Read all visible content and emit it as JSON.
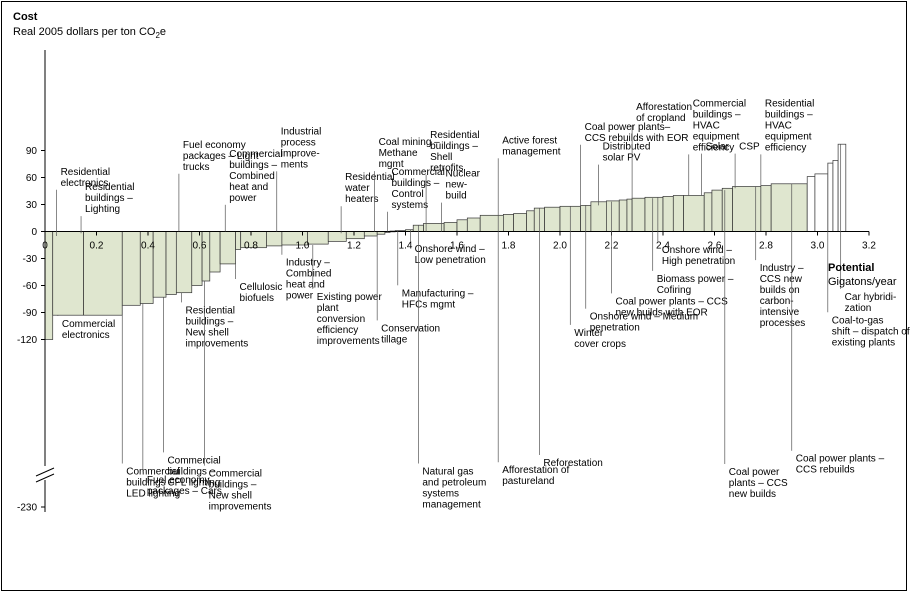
{
  "chart_data": {
    "type": "bar",
    "variant": "marginal-abatement-cost-curve",
    "title": "Cost",
    "ylabel": "Real 2005 dollars per ton CO",
    "ylabel_sub": "2",
    "ylabel_tail": "e",
    "xlabel_title": "Potential",
    "xlabel_unit": "Gigatons/year",
    "xlim": [
      0,
      3.2
    ],
    "ylim": [
      -120,
      100
    ],
    "y_break": true,
    "y_ticks": [
      90,
      60,
      30,
      0,
      -30,
      -60,
      -90,
      -120,
      -230
    ],
    "y_tick_labels": [
      "90",
      "60",
      "30",
      "0",
      "-30",
      "-60",
      "-90",
      "-120",
      "-230"
    ],
    "x_ticks": [
      0,
      0.2,
      0.4,
      0.6,
      0.8,
      1.0,
      1.2,
      1.4,
      1.6,
      1.8,
      2.0,
      2.2,
      2.4,
      2.6,
      2.8,
      3.0,
      3.2
    ],
    "x_tick_labels": [
      "0",
      "0.2",
      "0.4",
      "0.6",
      "0.8",
      "1.0",
      "1.2",
      "1.4",
      "1.6",
      "1.8",
      "2.0",
      "2.2",
      "2.4",
      "2.6",
      "2.8",
      "3.0",
      "3.2"
    ],
    "bar_fill": "#dfe6cf",
    "bar_stroke": "#333333",
    "bars": [
      {
        "x0": 0.0,
        "x1": 0.03,
        "v": -120
      },
      {
        "x0": 0.03,
        "x1": 0.15,
        "v": -93
      },
      {
        "x0": 0.15,
        "x1": 0.3,
        "v": -93
      },
      {
        "x0": 0.3,
        "x1": 0.37,
        "v": -82
      },
      {
        "x0": 0.37,
        "x1": 0.42,
        "v": -80
      },
      {
        "x0": 0.42,
        "x1": 0.47,
        "v": -73
      },
      {
        "x0": 0.47,
        "x1": 0.51,
        "v": -70
      },
      {
        "x0": 0.51,
        "x1": 0.57,
        "v": -68
      },
      {
        "x0": 0.57,
        "x1": 0.61,
        "v": -60
      },
      {
        "x0": 0.61,
        "x1": 0.64,
        "v": -55
      },
      {
        "x0": 0.64,
        "x1": 0.68,
        "v": -45
      },
      {
        "x0": 0.68,
        "x1": 0.74,
        "v": -36
      },
      {
        "x0": 0.74,
        "x1": 0.76,
        "v": -20
      },
      {
        "x0": 0.76,
        "x1": 0.86,
        "v": -18
      },
      {
        "x0": 0.86,
        "x1": 0.92,
        "v": -16
      },
      {
        "x0": 0.92,
        "x1": 1.02,
        "v": -15
      },
      {
        "x0": 1.02,
        "x1": 1.1,
        "v": -14
      },
      {
        "x0": 1.1,
        "x1": 1.17,
        "v": -11
      },
      {
        "x0": 1.17,
        "x1": 1.24,
        "v": -8
      },
      {
        "x0": 1.24,
        "x1": 1.29,
        "v": -5
      },
      {
        "x0": 1.29,
        "x1": 1.32,
        "v": -3
      },
      {
        "x0": 1.32,
        "x1": 1.34,
        "v": -1
      },
      {
        "x0": 1.34,
        "x1": 1.36,
        "v": 0.5
      },
      {
        "x0": 1.36,
        "x1": 1.4,
        "v": 1
      },
      {
        "x0": 1.4,
        "x1": 1.43,
        "v": 2
      },
      {
        "x0": 1.43,
        "x1": 1.47,
        "v": 7
      },
      {
        "x0": 1.47,
        "x1": 1.55,
        "v": 9
      },
      {
        "x0": 1.55,
        "x1": 1.6,
        "v": 10
      },
      {
        "x0": 1.6,
        "x1": 1.64,
        "v": 13
      },
      {
        "x0": 1.64,
        "x1": 1.69,
        "v": 15
      },
      {
        "x0": 1.69,
        "x1": 1.78,
        "v": 18
      },
      {
        "x0": 1.78,
        "x1": 1.82,
        "v": 19
      },
      {
        "x0": 1.82,
        "x1": 1.87,
        "v": 20
      },
      {
        "x0": 1.87,
        "x1": 1.9,
        "v": 23
      },
      {
        "x0": 1.9,
        "x1": 1.94,
        "v": 26
      },
      {
        "x0": 1.94,
        "x1": 2.0,
        "v": 27
      },
      {
        "x0": 2.0,
        "x1": 2.08,
        "v": 28
      },
      {
        "x0": 2.08,
        "x1": 2.12,
        "v": 29
      },
      {
        "x0": 2.12,
        "x1": 2.18,
        "v": 33
      },
      {
        "x0": 2.18,
        "x1": 2.23,
        "v": 34
      },
      {
        "x0": 2.23,
        "x1": 2.26,
        "v": 35
      },
      {
        "x0": 2.26,
        "x1": 2.28,
        "v": 36
      },
      {
        "x0": 2.28,
        "x1": 2.33,
        "v": 37
      },
      {
        "x0": 2.33,
        "x1": 2.4,
        "v": 38
      },
      {
        "x0": 2.4,
        "x1": 2.44,
        "v": 39
      },
      {
        "x0": 2.44,
        "x1": 2.48,
        "v": 40
      },
      {
        "x0": 2.48,
        "x1": 2.56,
        "v": 40
      },
      {
        "x0": 2.56,
        "x1": 2.59,
        "v": 43
      },
      {
        "x0": 2.59,
        "x1": 2.63,
        "v": 46
      },
      {
        "x0": 2.63,
        "x1": 2.67,
        "v": 48
      },
      {
        "x0": 2.67,
        "x1": 2.78,
        "v": 50
      },
      {
        "x0": 2.78,
        "x1": 2.82,
        "v": 51
      },
      {
        "x0": 2.82,
        "x1": 2.96,
        "v": 53
      },
      {
        "x0": 2.96,
        "x1": 2.99,
        "v": 61
      },
      {
        "x0": 2.99,
        "x1": 3.04,
        "v": 64
      },
      {
        "x0": 3.04,
        "x1": 3.06,
        "v": 76
      },
      {
        "x0": 3.06,
        "x1": 3.08,
        "v": 79
      },
      {
        "x0": 3.08,
        "x1": 3.11,
        "v": 97
      }
    ],
    "white_from_index": 53,
    "annotations": [
      {
        "lines": [
          "Residential",
          "electronics"
        ],
        "x": 0.045,
        "y": 62,
        "ty": 63,
        "ly": -5
      },
      {
        "lines": [
          "Residential",
          "buildings –",
          "Lighting"
        ],
        "x": 0.14,
        "y": 45,
        "ty": 46,
        "ly": -2
      },
      {
        "lines": [
          "Fuel economy",
          "packages – Light",
          "trucks"
        ],
        "x": 0.52,
        "y": 92,
        "ty": 93,
        "ly": 0
      },
      {
        "lines": [
          "Commercial",
          "buildings –",
          "Combined",
          "heat and",
          "power"
        ],
        "x": 0.7,
        "y": 82,
        "ty": 83,
        "ly": 0
      },
      {
        "lines": [
          "Industrial",
          "process",
          "improve-",
          "ments"
        ],
        "x": 0.9,
        "y": 107,
        "ty": 108,
        "ly": 0
      },
      {
        "lines": [
          "Residential",
          "water",
          "heaters"
        ],
        "x": 1.15,
        "y": 56,
        "ty": 57,
        "ly": -2
      },
      {
        "lines": [
          "Coal mining –",
          "Methane",
          "mgmt"
        ],
        "x": 1.28,
        "y": 95,
        "ty": 96,
        "ly": 0
      },
      {
        "lines": [
          "Commercial",
          "buildings –",
          "Control",
          "systems"
        ],
        "x": 1.33,
        "y": 62,
        "ty": 63,
        "ly": 0
      },
      {
        "lines": [
          "Residential",
          "buildings –",
          "Shell",
          "retrofits"
        ],
        "x": 1.48,
        "y": 103,
        "ty": 104,
        "ly": 0
      },
      {
        "lines": [
          "Nuclear",
          "new-",
          "build"
        ],
        "x": 1.54,
        "y": 60,
        "ty": 61,
        "ly": 0
      },
      {
        "lines": [
          "Active forest",
          "management"
        ],
        "x": 1.76,
        "y": 97,
        "ty": 98,
        "ly": 18
      },
      {
        "lines": [
          "Coal power plants–",
          "CCS rebuilds with EOR"
        ],
        "x": 2.08,
        "y": 112,
        "ty": 113,
        "ly": 27
      },
      {
        "lines": [
          "Distributed",
          "solar PV"
        ],
        "x": 2.15,
        "y": 90,
        "ty": 91,
        "ly": 29
      },
      {
        "lines": [
          "Afforestation",
          "of cropland"
        ],
        "x": 2.28,
        "y": 134,
        "ty": 135,
        "ly": 36
      },
      {
        "lines": [
          "Commercial",
          "buildings –",
          "HVAC",
          "equipment",
          "efficiency"
        ],
        "x": 2.5,
        "y": 138,
        "ty": 139,
        "ly": 40
      },
      {
        "lines": [
          "Solar"
        ],
        "x": 2.55,
        "y": 90,
        "ty": 91,
        "ly": 40
      },
      {
        "lines": [
          "CSP"
        ],
        "x": 2.68,
        "y": 90,
        "ty": 91,
        "ly": 48
      },
      {
        "lines": [
          "Residential",
          "buildings –",
          "HVAC",
          "equipment",
          "efficiency"
        ],
        "x": 2.78,
        "y": 138,
        "ty": 139,
        "ly": 51
      },
      {
        "lines": [
          "Commercial",
          "electronics"
        ],
        "x": 0.05,
        "y": -107,
        "ty": -106,
        "ly": -93
      },
      {
        "lines": [
          "Commercial",
          "buildings –",
          "LED lighting"
        ],
        "x": 0.3,
        "y": -155,
        "ty": -154,
        "ly": -82
      },
      {
        "lines": [
          "Fuel economy",
          "packages – Cars"
        ],
        "x": 0.38,
        "y": -175,
        "ty": -174,
        "ly": -80
      },
      {
        "lines": [
          "Commercial",
          "buildings –",
          "CFL lighting"
        ],
        "x": 0.46,
        "y": -129,
        "ty": -128,
        "ly": -73
      },
      {
        "lines": [
          "Residential",
          "buildings –",
          "New shell",
          "improvements"
        ],
        "x": 0.53,
        "y": -92,
        "ty": -91,
        "ly": -68
      },
      {
        "lines": [
          "Commercial",
          "buildings –",
          "New shell",
          "improvements"
        ],
        "x": 0.62,
        "y": -160,
        "ty": -159,
        "ly": -55
      },
      {
        "lines": [
          "Cellulosic",
          "biofuels"
        ],
        "x": 0.74,
        "y": -66,
        "ty": -65,
        "ly": -36
      },
      {
        "lines": [
          "Industry –",
          "Combined",
          "heat and",
          "power"
        ],
        "x": 0.92,
        "y": -39,
        "ty": -38,
        "ly": -16
      },
      {
        "lines": [
          "Existing power",
          "plant",
          "conversion",
          "efficiency",
          "improvements"
        ],
        "x": 1.04,
        "y": -77,
        "ty": -76,
        "ly": -15
      },
      {
        "lines": [
          "Conservation",
          "tillage"
        ],
        "x": 1.29,
        "y": -112,
        "ty": -111,
        "ly": -5
      },
      {
        "lines": [
          "Onshore wind –",
          "Low penetration"
        ],
        "x": 1.42,
        "y": -24,
        "ty": -23,
        "ly": 2
      },
      {
        "lines": [
          "Manufacturing –",
          "HFCs mgmt"
        ],
        "x": 1.37,
        "y": -73,
        "ty": -72,
        "ly": 0.5
      },
      {
        "lines": [
          "Natural gas",
          "and petroleum",
          "systems",
          "management"
        ],
        "x": 1.45,
        "y": -155,
        "ty": -154,
        "ly": 7
      },
      {
        "lines": [
          "Afforestation of",
          "pastureland"
        ],
        "x": 1.76,
        "y": -152,
        "ty": -151,
        "ly": 18
      },
      {
        "lines": [
          "Reforestation"
        ],
        "x": 1.92,
        "y": -135,
        "ty": -134,
        "ly": 26
      },
      {
        "lines": [
          "Winter",
          "cover crops"
        ],
        "x": 2.04,
        "y": -117,
        "ty": -116,
        "ly": 28
      },
      {
        "lines": [
          "Onshore wind – Medium",
          "penetration"
        ],
        "x": 2.1,
        "y": -99,
        "ty": -98,
        "ly": 29
      },
      {
        "lines": [
          "Coal power plants – CCS",
          "new builds with EOR"
        ],
        "x": 2.2,
        "y": -82,
        "ty": -81,
        "ly": 33
      },
      {
        "lines": [
          "Biomass power –",
          "Cofiring"
        ],
        "x": 2.36,
        "y": -57,
        "ty": -56,
        "ly": 37
      },
      {
        "lines": [
          "Onshore wind –",
          "High penetration"
        ],
        "x": 2.38,
        "y": -25,
        "ty": -24,
        "ly": 38
      },
      {
        "lines": [
          "Industry –",
          "CCS new",
          "builds on",
          "carbon-",
          "intensive",
          "processes"
        ],
        "x": 2.76,
        "y": -45,
        "ty": -44,
        "ly": 50
      },
      {
        "lines": [
          "Coal power",
          "plants – CCS",
          "new builds"
        ],
        "x": 2.64,
        "y": -156,
        "ty": -155,
        "ly": 46
      },
      {
        "lines": [
          "Coal power plants –",
          "CCS rebuilds"
        ],
        "x": 2.9,
        "y": -125,
        "ty": -124,
        "ly": 53
      },
      {
        "lines": [
          "Car hybridi-",
          "zation"
        ],
        "x": 3.09,
        "y": -77,
        "ty": -76,
        "ly": 97
      },
      {
        "lines": [
          "Coal-to-gas",
          "shift – dispatch of",
          "existing plants"
        ],
        "x": 3.04,
        "y": -103,
        "ty": -102,
        "ly": 76
      }
    ]
  }
}
